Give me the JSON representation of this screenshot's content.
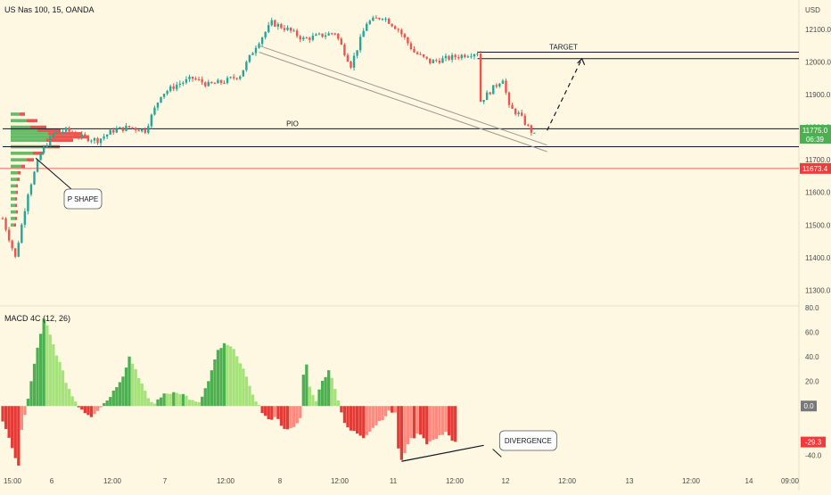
{
  "header": {
    "symbol_title": "US Nas 100, 15, OANDA",
    "currency": "USD"
  },
  "colors": {
    "background": "#fef8e2",
    "up": "#26a69a",
    "down": "#ef5350",
    "volume_profile_up": "#4caf50",
    "volume_profile_down": "#e53935",
    "macd_up_strong": "#4caf50",
    "macd_up_weak": "#a5e27a",
    "macd_down_strong": "#e53935",
    "macd_down_weak": "#ff8a80",
    "price_badge": "#4caf50",
    "support_badge": "#ef3b3b"
  },
  "chart_data": [
    {
      "type": "candlestick",
      "name": "price",
      "x_labels": [
        "15:00",
        "6",
        "12:00",
        "7",
        "12:00",
        "8",
        "12:00",
        "11",
        "12:00",
        "12",
        "12:00",
        "13",
        "12:00",
        "14",
        "09:00"
      ],
      "y_ticks": [
        12100.0,
        12000.0,
        11900.0,
        11800.0,
        11700.0,
        11600.0,
        11500.0,
        11400.0,
        11300.0
      ],
      "ylim": [
        11260,
        12190
      ],
      "close_path": [
        [
          0,
          11520
        ],
        [
          4,
          11400
        ],
        [
          8,
          11600
        ],
        [
          12,
          11720
        ],
        [
          16,
          11780
        ],
        [
          20,
          11790
        ],
        [
          25,
          11770
        ],
        [
          30,
          11760
        ],
        [
          35,
          11790
        ],
        [
          40,
          11800
        ],
        [
          45,
          11790
        ],
        [
          50,
          11900
        ],
        [
          55,
          11930
        ],
        [
          60,
          11950
        ],
        [
          65,
          11930
        ],
        [
          70,
          11940
        ],
        [
          75,
          11960
        ],
        [
          80,
          12050
        ],
        [
          85,
          12120
        ],
        [
          90,
          12100
        ],
        [
          95,
          12070
        ],
        [
          100,
          12080
        ],
        [
          105,
          12090
        ],
        [
          110,
          11990
        ],
        [
          115,
          12120
        ],
        [
          120,
          12140
        ],
        [
          125,
          12100
        ],
        [
          130,
          12030
        ],
        [
          135,
          12000
        ],
        [
          140,
          12010
        ],
        [
          145,
          12020
        ],
        [
          150,
          12030
        ],
        [
          151,
          11880
        ],
        [
          155,
          11920
        ],
        [
          158,
          11950
        ],
        [
          160,
          11860
        ],
        [
          163,
          11840
        ],
        [
          166,
          11800
        ],
        [
          168,
          11775
        ]
      ],
      "current_price": {
        "label": "11775.0",
        "countdown": "06:39"
      },
      "support_level": {
        "label": "11673.4",
        "value": 11673.4
      },
      "zones": [
        {
          "label": "TARGET",
          "top": 12030,
          "bottom": 12010,
          "x_from": 150
        },
        {
          "label": "PIO",
          "top": 11795,
          "bottom": 11740,
          "x_from": 0
        }
      ],
      "trendlines": [
        {
          "from": [
            81,
            12050
          ],
          "to": [
            172,
            11745
          ]
        },
        {
          "from": [
            81,
            12030
          ],
          "to": [
            172,
            11725
          ]
        }
      ],
      "projection": {
        "from": [
          172,
          11790
        ],
        "to": [
          183,
          12010
        ]
      },
      "volume_profile": {
        "prices": [
          11840,
          11820,
          11800,
          11790,
          11780,
          11770,
          11760,
          11740,
          11720,
          11700,
          11680,
          11660,
          11640,
          11620,
          11600,
          11580,
          11560,
          11540,
          11520,
          11500
        ],
        "up": [
          10,
          18,
          22,
          30,
          42,
          46,
          40,
          35,
          25,
          18,
          12,
          8,
          7,
          6,
          6,
          5,
          5,
          6,
          5,
          4
        ],
        "down": [
          6,
          12,
          18,
          26,
          38,
          42,
          30,
          20,
          12,
          8,
          4,
          3,
          3,
          2,
          2,
          2,
          2,
          2,
          2,
          2
        ]
      },
      "annotations": [
        {
          "label": "P SHAPE",
          "x": 2,
          "price": 11705
        }
      ]
    },
    {
      "type": "bar",
      "name": "MACD 4C (12, 26)",
      "y_ticks": [
        80.0,
        60.0,
        40.0,
        20.0,
        0.0,
        -40.0
      ],
      "ylim": [
        -47,
        80
      ],
      "current_values": [
        {
          "label": "0.0",
          "value": 0.0
        },
        {
          "label": "-29.3",
          "value": -29.3
        }
      ],
      "histogram_path": [
        [
          0,
          -12
        ],
        [
          3,
          -35
        ],
        [
          5,
          -48
        ],
        [
          6,
          -20
        ],
        [
          8,
          5
        ],
        [
          10,
          35
        ],
        [
          12,
          58
        ],
        [
          13,
          70
        ],
        [
          14,
          65
        ],
        [
          16,
          50
        ],
        [
          18,
          35
        ],
        [
          20,
          20
        ],
        [
          22,
          8
        ],
        [
          24,
          0
        ],
        [
          26,
          -5
        ],
        [
          28,
          -8
        ],
        [
          30,
          -3
        ],
        [
          33,
          5
        ],
        [
          35,
          12
        ],
        [
          38,
          25
        ],
        [
          40,
          40
        ],
        [
          42,
          30
        ],
        [
          44,
          18
        ],
        [
          46,
          5
        ],
        [
          48,
          2
        ],
        [
          50,
          8
        ],
        [
          52,
          10
        ],
        [
          55,
          12
        ],
        [
          58,
          8
        ],
        [
          60,
          4
        ],
        [
          62,
          2
        ],
        [
          65,
          20
        ],
        [
          68,
          45
        ],
        [
          70,
          50
        ],
        [
          72,
          48
        ],
        [
          74,
          42
        ],
        [
          76,
          30
        ],
        [
          78,
          15
        ],
        [
          80,
          5
        ],
        [
          82,
          -5
        ],
        [
          84,
          -12
        ],
        [
          86,
          -8
        ],
        [
          88,
          -15
        ],
        [
          90,
          -20
        ],
        [
          92,
          -18
        ],
        [
          94,
          -10
        ],
        [
          95,
          25
        ],
        [
          96,
          35
        ],
        [
          97,
          15
        ],
        [
          99,
          5
        ],
        [
          101,
          20
        ],
        [
          103,
          30
        ],
        [
          105,
          15
        ],
        [
          106,
          5
        ],
        [
          108,
          -15
        ],
        [
          110,
          -20
        ],
        [
          112,
          -22
        ],
        [
          114,
          -25
        ],
        [
          116,
          -20
        ],
        [
          118,
          -15
        ],
        [
          120,
          -10
        ],
        [
          122,
          -5
        ],
        [
          124,
          -5
        ],
        [
          125,
          -35
        ],
        [
          126,
          -45
        ],
        [
          128,
          -30
        ],
        [
          130,
          -25
        ],
        [
          132,
          -22
        ],
        [
          134,
          -30
        ],
        [
          136,
          -28
        ],
        [
          138,
          -25
        ],
        [
          140,
          -20
        ],
        [
          142,
          -28
        ],
        [
          143,
          -30
        ]
      ],
      "divergence_line": {
        "from": [
          126,
          -45
        ],
        "to": [
          152,
          -32
        ]
      },
      "annotations": [
        {
          "label": "DIVERGENCE",
          "x": 157,
          "value": -40
        }
      ]
    }
  ]
}
